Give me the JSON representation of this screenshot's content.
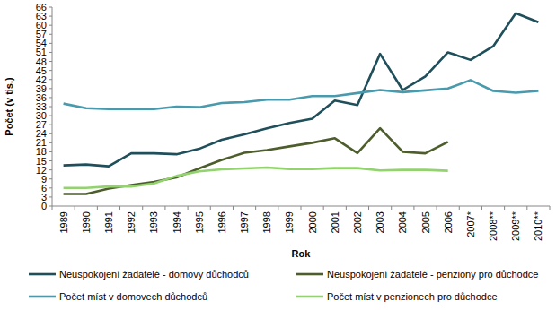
{
  "chart_data": {
    "type": "line",
    "x_label": "Rok",
    "y_label": "Počet (v tis.)",
    "categories": [
      "1989",
      "1990",
      "1991",
      "1992",
      "1993",
      "1994",
      "1995",
      "1996",
      "1997",
      "1998",
      "1999",
      "2000",
      "2001",
      "2002",
      "2003",
      "2004",
      "2005",
      "2006",
      "2007*",
      "2008**",
      "2009**",
      "2010**"
    ],
    "series": [
      {
        "name": "Neuspokojení žadatelé - domovy důchodců",
        "color": "#1f4f5b",
        "values": [
          13.5,
          13.8,
          13.2,
          17.5,
          17.5,
          17.2,
          19,
          22,
          23.8,
          25.8,
          27.6,
          29,
          35,
          33.5,
          50.5,
          38.5,
          43,
          51,
          48.5,
          53,
          64,
          61
        ]
      },
      {
        "name": "Neuspokojení žadatelé - penziony pro důchodce",
        "color": "#4d5e2c",
        "values": [
          4,
          4,
          5.8,
          7,
          8,
          9.5,
          12.5,
          15.3,
          17.7,
          18.6,
          19.8,
          21,
          22.5,
          17.6,
          25.8,
          18,
          17.5,
          21.3,
          null,
          null,
          null,
          null
        ]
      },
      {
        "name": "Počet míst v domovech důchodců",
        "color": "#4a9aae",
        "values": [
          34,
          32.5,
          32.2,
          32.2,
          32.2,
          33,
          32.8,
          34.2,
          34.5,
          35.3,
          35.3,
          36.5,
          36.5,
          37.5,
          38.5,
          37.8,
          38.4,
          39,
          41.8,
          38.2,
          37.6,
          38.2
        ]
      },
      {
        "name": "Počet míst v penzionech pro důchodce",
        "color": "#92d36e",
        "values": [
          6,
          6,
          6.5,
          6.5,
          7.5,
          10,
          11.5,
          12.2,
          12.5,
          12.8,
          12.3,
          12.3,
          12.6,
          12.6,
          11.8,
          12,
          12,
          11.7,
          null,
          null,
          null,
          null
        ]
      }
    ],
    "ylim": [
      0,
      66
    ],
    "yticks": [
      0,
      3,
      6,
      9,
      12,
      15,
      18,
      21,
      24,
      27,
      30,
      33,
      36,
      39,
      42,
      45,
      48,
      51,
      54,
      57,
      60,
      63,
      66
    ],
    "grid": false,
    "legend": "bottom"
  }
}
